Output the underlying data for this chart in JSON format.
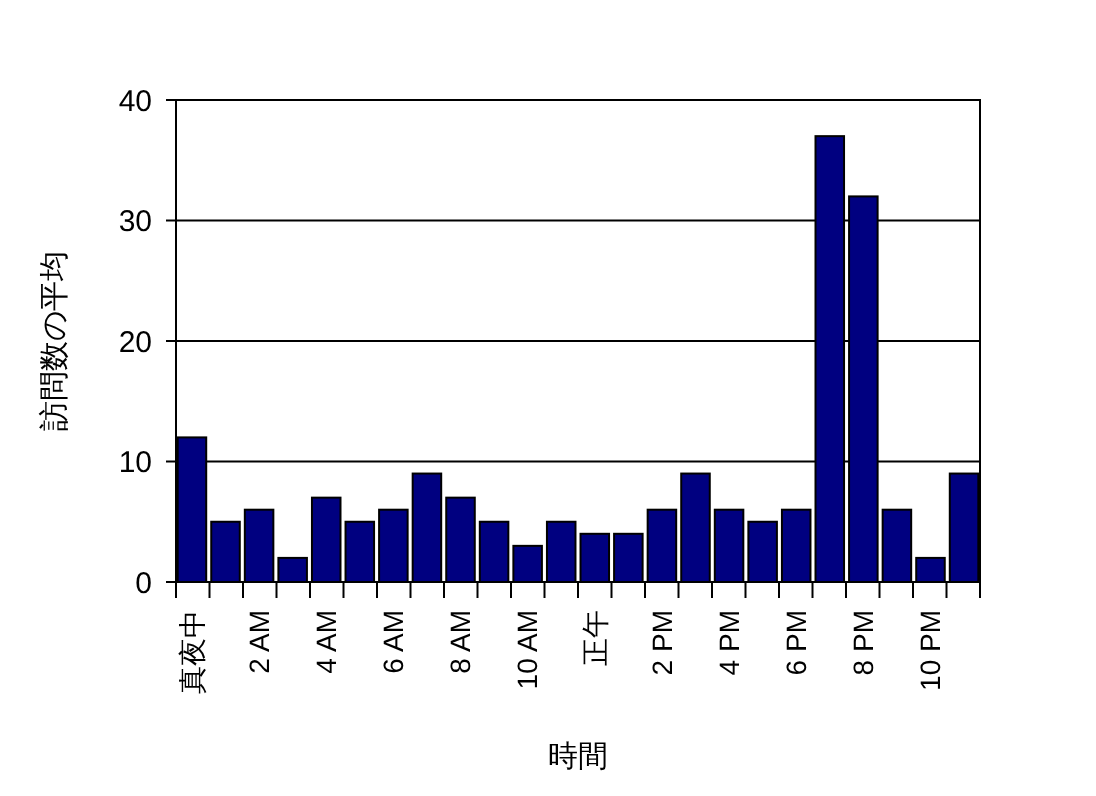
{
  "chart_data": {
    "type": "bar",
    "xlabel": "時間",
    "ylabel": "訪問数の平均",
    "categories": [
      "真夜中",
      null,
      "2 AM",
      null,
      "4 AM",
      null,
      "6 AM",
      null,
      "8 AM",
      null,
      "10 AM",
      null,
      "正午",
      null,
      "2 PM",
      null,
      "4 PM",
      null,
      "6 PM",
      null,
      "8 PM",
      null,
      "10 PM",
      null
    ],
    "values": [
      12,
      5,
      6,
      2,
      7,
      5,
      6,
      9,
      7,
      5,
      3,
      5,
      4,
      4,
      6,
      9,
      6,
      5,
      6,
      37,
      32,
      6,
      2,
      9
    ],
    "color": "#000080",
    "ylim": [
      0,
      40
    ],
    "yticks": [
      0,
      10,
      20,
      30,
      40
    ],
    "grid": "y"
  }
}
